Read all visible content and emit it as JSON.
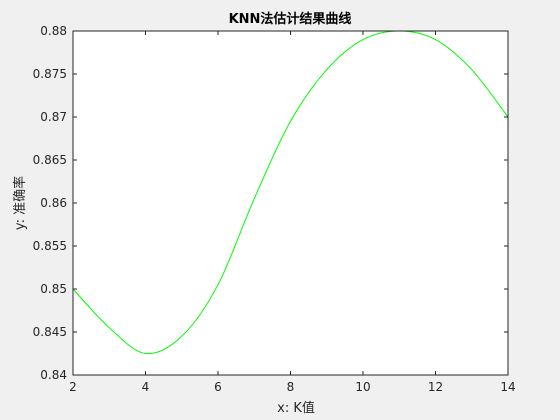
{
  "chart_data": {
    "type": "line",
    "title": "KNN法估计结果曲线",
    "xlabel": "x: K值",
    "ylabel": "y: 准确率",
    "xlim": [
      2,
      14
    ],
    "ylim": [
      0.84,
      0.88
    ],
    "xticks": [
      2,
      4,
      6,
      8,
      10,
      12,
      14
    ],
    "yticks": [
      0.84,
      0.845,
      0.85,
      0.855,
      0.86,
      0.865,
      0.87,
      0.875,
      0.88
    ],
    "ytick_labels": [
      "0.84",
      "0.845",
      "0.85",
      "0.855",
      "0.86",
      "0.865",
      "0.87",
      "0.875",
      "0.88"
    ],
    "grid": false,
    "series": [
      {
        "color": "#00ff00",
        "x": [
          2,
          3,
          4,
          5,
          6,
          7,
          8,
          9,
          10,
          11,
          12,
          13,
          14
        ],
        "y": [
          0.85,
          0.8455,
          0.8425,
          0.8445,
          0.8505,
          0.8605,
          0.8695,
          0.8755,
          0.879,
          0.88,
          0.879,
          0.8755,
          0.87
        ]
      }
    ]
  },
  "colors": {
    "figure_bg": "#f0f0f0",
    "axes_bg": "#ffffff",
    "axis": "#262626",
    "line": "#00ff00"
  }
}
